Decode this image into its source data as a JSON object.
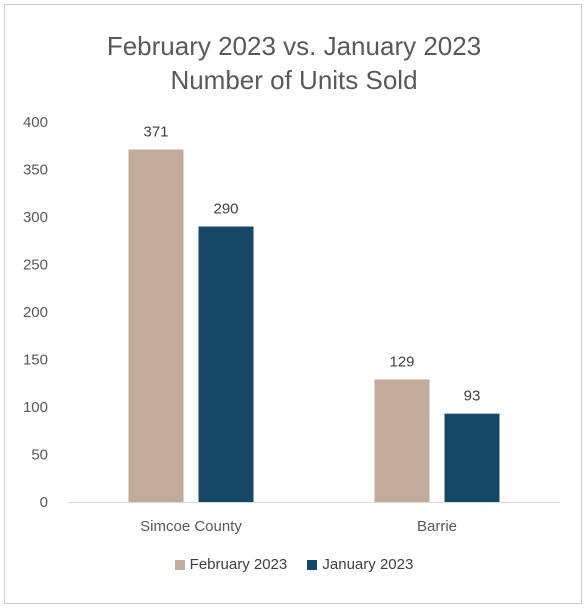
{
  "chart_data": {
    "type": "bar",
    "title": "February 2023 vs. January 2023",
    "subtitle": "Number of Units Sold",
    "categories": [
      "Simcoe County",
      "Barrie"
    ],
    "series": [
      {
        "name": "February 2023",
        "values": [
          371,
          129
        ],
        "color": "#c2ab9b"
      },
      {
        "name": "January 2023",
        "values": [
          290,
          93
        ],
        "color": "#144864"
      }
    ],
    "ylim": [
      0,
      400
    ],
    "yticks": [
      "0",
      "50",
      "100",
      "150",
      "200",
      "250",
      "300",
      "350",
      "400"
    ],
    "grid": false,
    "legend": "bottom",
    "data_labels": true
  }
}
